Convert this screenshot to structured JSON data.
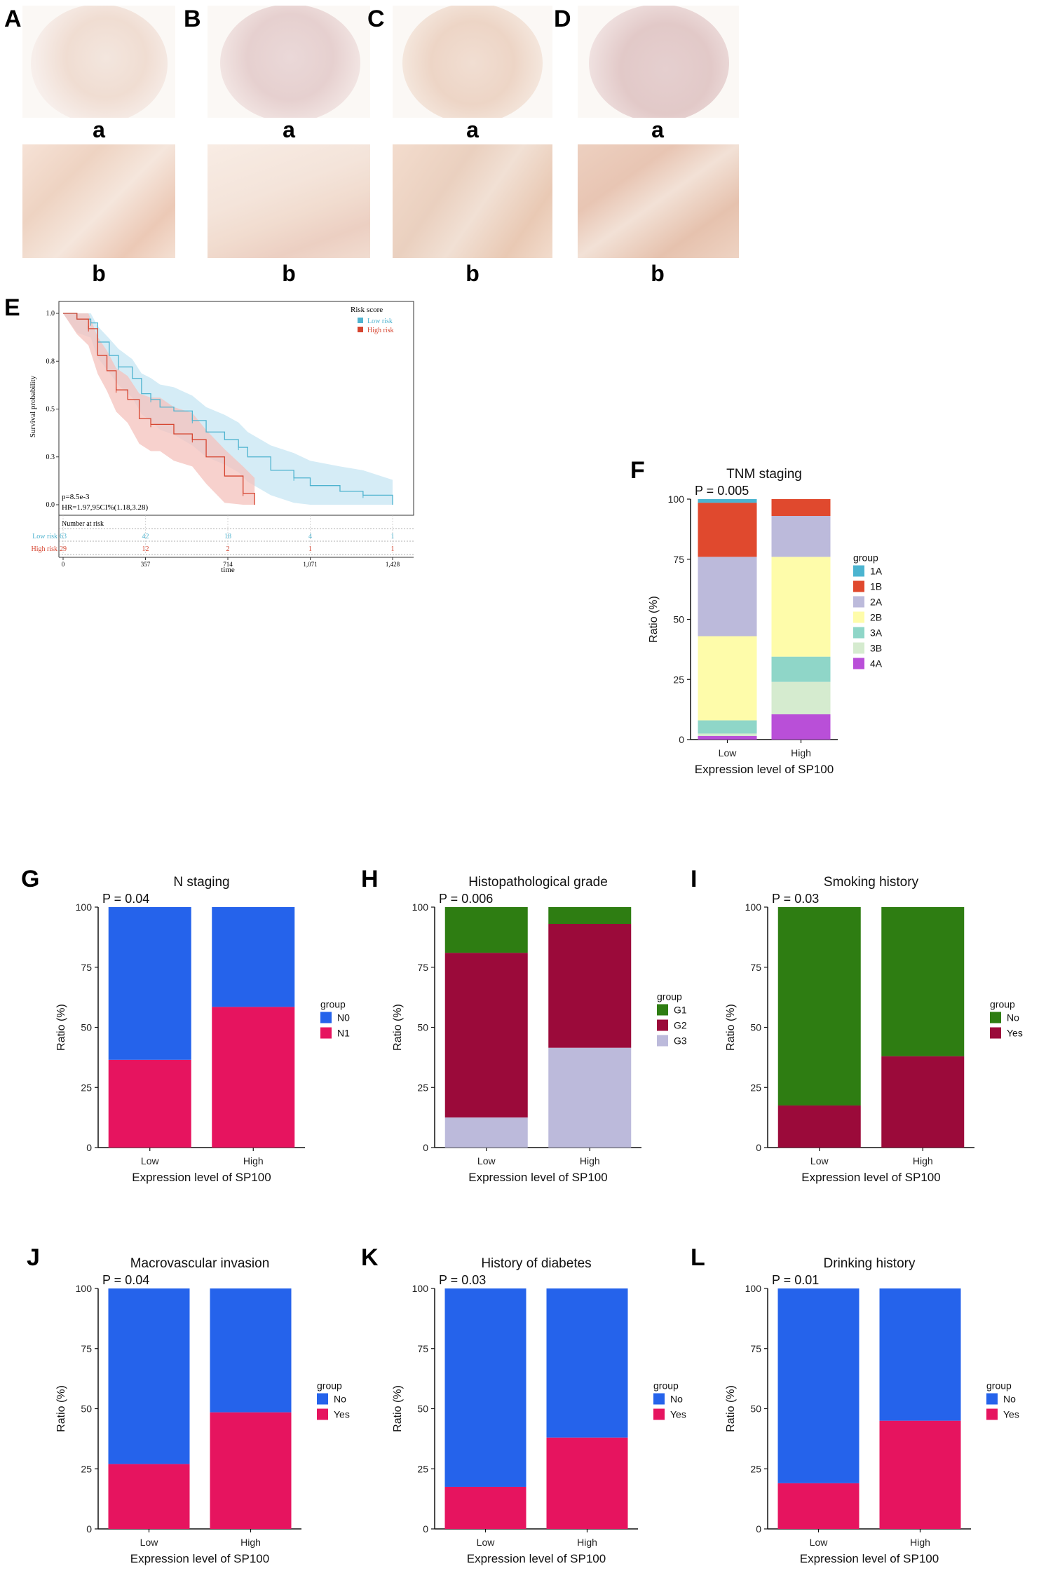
{
  "micrograph_panels": [
    {
      "letter": "A",
      "sub_a": "a",
      "sub_b": "b"
    },
    {
      "letter": "B",
      "sub_a": "a",
      "sub_b": "b"
    },
    {
      "letter": "C",
      "sub_a": "a",
      "sub_b": "b"
    },
    {
      "letter": "D",
      "sub_a": "a",
      "sub_b": "b"
    }
  ],
  "colors": {
    "low_risk": "#4fb3cf",
    "high_risk": "#d6442f",
    "low_risk_band": "#c7e6f3",
    "high_risk_band": "#f4c2bc",
    "blue": "#2563eb",
    "pink": "#e6145f",
    "dark_green": "#2e7d12",
    "maroon": "#9b0a3a",
    "lavender": "#bcbadb"
  },
  "km": {
    "letter": "E",
    "legend_title": "Risk score",
    "legend_items": [
      "Low risk",
      "High risk"
    ],
    "ylabel": "Survival probability",
    "xlabel": "time",
    "yticks": [
      "1.0",
      "0.8",
      "0.5",
      "0.3",
      "0.0"
    ],
    "xticks": [
      "0",
      "357",
      "714",
      "1,071",
      "1,428"
    ],
    "pvalue": "p=8.5e-3",
    "hr": "HR=1.97,95CI%(1.18,3.28)",
    "risk_table_title": "Number at risk",
    "risk_rows": [
      {
        "label": "Low risk",
        "counts": [
          "63",
          "42",
          "18",
          "4",
          "1"
        ]
      },
      {
        "label": "High risk",
        "counts": [
          "29",
          "12",
          "2",
          "1",
          "1"
        ]
      }
    ]
  },
  "chart_data": [
    {
      "type": "line",
      "panel": "E",
      "xlabel": "time",
      "ylabel": "Survival probability",
      "xlim": [
        0,
        1428
      ],
      "ylim": [
        0,
        1
      ],
      "series": [
        {
          "name": "Low risk",
          "x": [
            0,
            60,
            120,
            150,
            200,
            240,
            300,
            340,
            380,
            420,
            480,
            560,
            620,
            700,
            760,
            800,
            900,
            1000,
            1071,
            1200,
            1300,
            1428
          ],
          "y": [
            1.0,
            0.97,
            0.95,
            0.85,
            0.78,
            0.72,
            0.66,
            0.58,
            0.55,
            0.51,
            0.49,
            0.44,
            0.38,
            0.34,
            0.3,
            0.25,
            0.18,
            0.14,
            0.1,
            0.07,
            0.05,
            0.0
          ]
        },
        {
          "name": "High risk",
          "x": [
            0,
            60,
            110,
            150,
            190,
            230,
            280,
            330,
            380,
            420,
            480,
            560,
            620,
            700,
            780,
            830
          ],
          "y": [
            1.0,
            0.97,
            0.92,
            0.78,
            0.7,
            0.6,
            0.55,
            0.45,
            0.42,
            0.42,
            0.37,
            0.34,
            0.25,
            0.15,
            0.06,
            0.0
          ]
        }
      ]
    },
    {
      "type": "bar",
      "panel": "F",
      "title": "TNM staging",
      "pvalue": "P = 0.005",
      "categories": [
        "Low",
        "High"
      ],
      "xlabel": "Expression level of SP100",
      "ylabel": "Ratio (%)",
      "ylim": [
        0,
        100
      ],
      "legend_title": "group",
      "series": [
        {
          "name": "4A",
          "color": "#b94fd8",
          "values": [
            1.5,
            10.5
          ]
        },
        {
          "name": "3B",
          "color": "#d5ebcf",
          "values": [
            1.0,
            13.5
          ]
        },
        {
          "name": "3A",
          "color": "#8fd6c8",
          "values": [
            5.5,
            10.5
          ]
        },
        {
          "name": "2B",
          "color": "#fefcaa",
          "values": [
            35.0,
            41.5
          ]
        },
        {
          "name": "2A",
          "color": "#bcbadb",
          "values": [
            33.0,
            17.0
          ]
        },
        {
          "name": "1B",
          "color": "#e0492e",
          "values": [
            22.5,
            7.0
          ]
        },
        {
          "name": "1A",
          "color": "#4bb4d0",
          "values": [
            1.5,
            0.0
          ]
        }
      ]
    },
    {
      "type": "bar",
      "panel": "G",
      "title": "N staging",
      "pvalue": "P = 0.04",
      "categories": [
        "Low",
        "High"
      ],
      "xlabel": "Expression level of SP100",
      "ylabel": "Ratio (%)",
      "ylim": [
        0,
        100
      ],
      "legend_title": "group",
      "series": [
        {
          "name": "N1",
          "color": "#e6145f",
          "values": [
            36.5,
            58.5
          ]
        },
        {
          "name": "N0",
          "color": "#2563eb",
          "values": [
            63.5,
            41.5
          ]
        }
      ]
    },
    {
      "type": "bar",
      "panel": "H",
      "title": "Histopathological grade",
      "pvalue": "P = 0.006",
      "categories": [
        "Low",
        "High"
      ],
      "xlabel": "Expression level of SP100",
      "ylabel": "Ratio (%)",
      "ylim": [
        0,
        100
      ],
      "legend_title": "group",
      "series": [
        {
          "name": "G3",
          "color": "#bcbadb",
          "values": [
            12.5,
            41.5
          ]
        },
        {
          "name": "G2",
          "color": "#9b0a3a",
          "values": [
            68.5,
            51.5
          ]
        },
        {
          "name": "G1",
          "color": "#2e7d12",
          "values": [
            19.0,
            7.0
          ]
        }
      ]
    },
    {
      "type": "bar",
      "panel": "I",
      "title": "Smoking history",
      "pvalue": "P = 0.03",
      "categories": [
        "Low",
        "High"
      ],
      "xlabel": "Expression level of SP100",
      "ylabel": "Ratio (%)",
      "ylim": [
        0,
        100
      ],
      "legend_title": "group",
      "series": [
        {
          "name": "Yes",
          "color": "#9b0a3a",
          "values": [
            17.5,
            38.0
          ]
        },
        {
          "name": "No",
          "color": "#2e7d12",
          "values": [
            82.5,
            62.0
          ]
        }
      ]
    },
    {
      "type": "bar",
      "panel": "J",
      "title": "Macrovascular invasion",
      "pvalue": "P = 0.04",
      "categories": [
        "Low",
        "High"
      ],
      "xlabel": "Expression level of SP100",
      "ylabel": "Ratio (%)",
      "ylim": [
        0,
        100
      ],
      "legend_title": "group",
      "series": [
        {
          "name": "Yes",
          "color": "#e6145f",
          "values": [
            27.0,
            48.5
          ]
        },
        {
          "name": "No",
          "color": "#2563eb",
          "values": [
            73.0,
            51.5
          ]
        }
      ]
    },
    {
      "type": "bar",
      "panel": "K",
      "title": "History of diabetes",
      "pvalue": "P = 0.03",
      "categories": [
        "Low",
        "High"
      ],
      "xlabel": "Expression level of SP100",
      "ylabel": "Ratio (%)",
      "ylim": [
        0,
        100
      ],
      "legend_title": "group",
      "series": [
        {
          "name": "Yes",
          "color": "#e6145f",
          "values": [
            17.5,
            38.0
          ]
        },
        {
          "name": "No",
          "color": "#2563eb",
          "values": [
            82.5,
            62.0
          ]
        }
      ]
    },
    {
      "type": "bar",
      "panel": "L",
      "title": "Drinking history",
      "pvalue": "P = 0.01",
      "categories": [
        "Low",
        "High"
      ],
      "xlabel": "Expression level of SP100",
      "ylabel": "Ratio (%)",
      "ylim": [
        0,
        100
      ],
      "legend_title": "group",
      "series": [
        {
          "name": "Yes",
          "color": "#e6145f",
          "values": [
            19.0,
            45.0
          ]
        },
        {
          "name": "No",
          "color": "#2563eb",
          "values": [
            81.0,
            55.0
          ]
        }
      ]
    }
  ]
}
